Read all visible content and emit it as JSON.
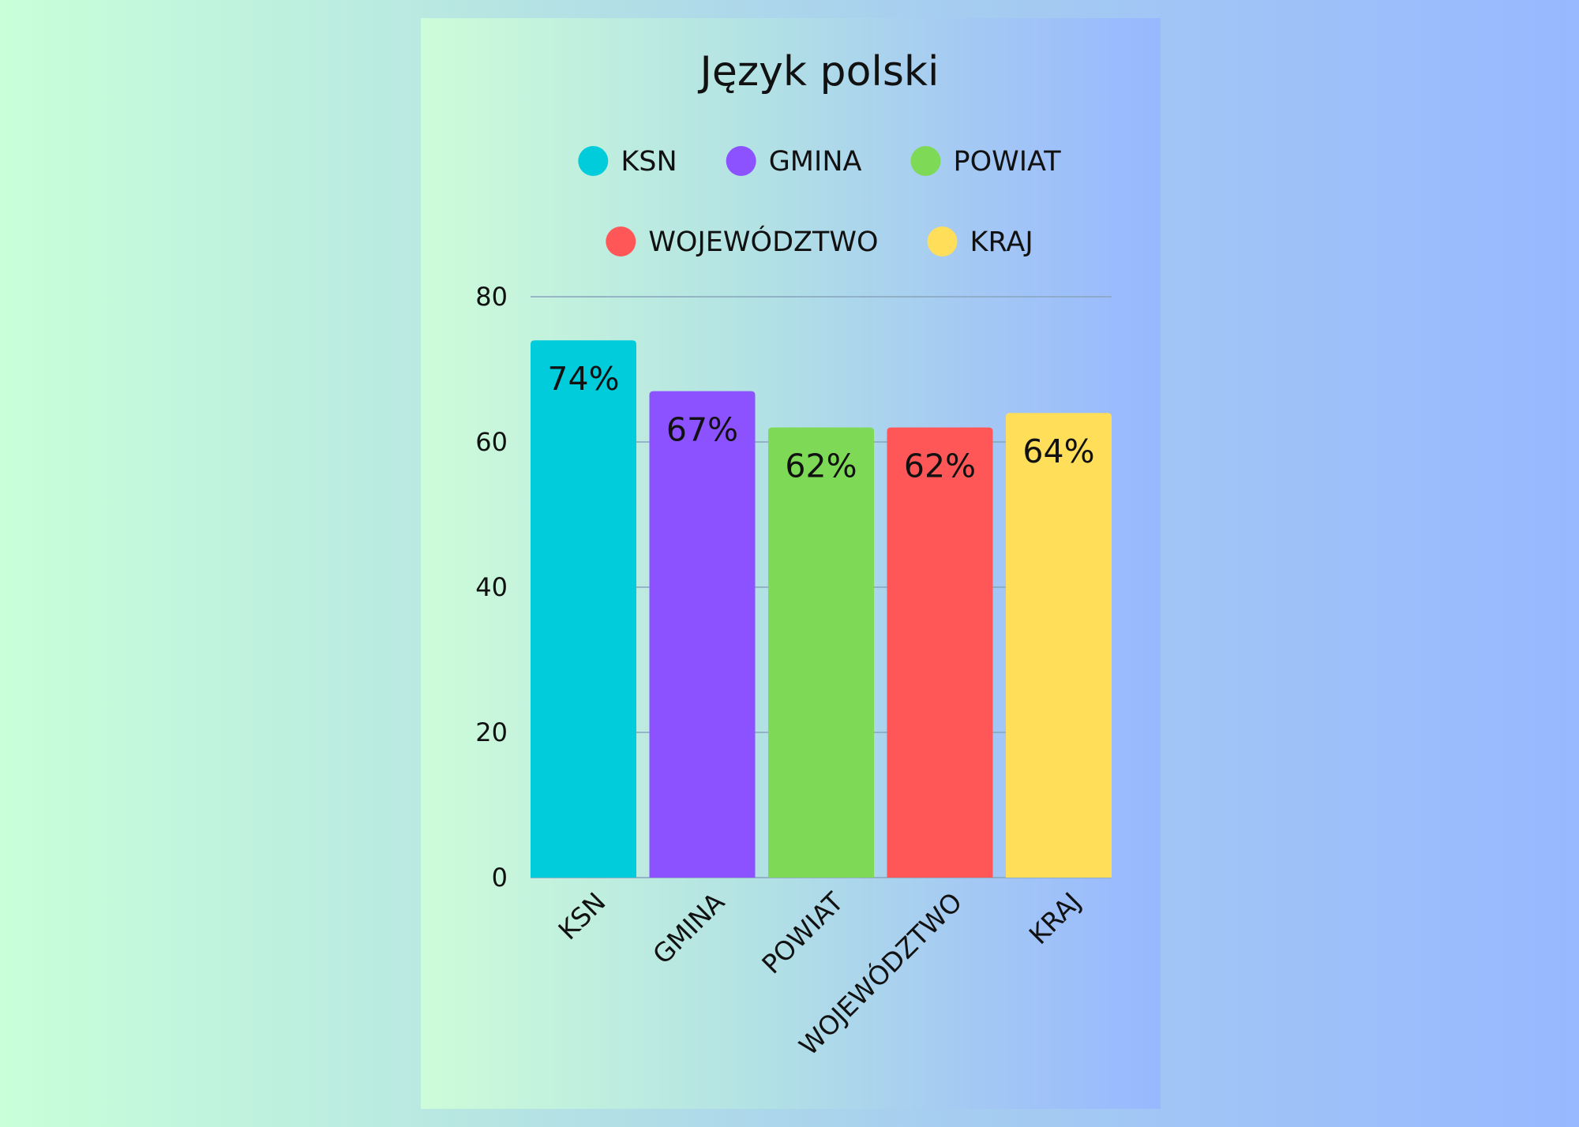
{
  "chart_data": {
    "type": "bar",
    "title": "Język polski",
    "categories": [
      "KSN",
      "GMINA",
      "POWIAT",
      "WOJEWÓDZTWO",
      "KRAJ"
    ],
    "values": [
      74,
      67,
      62,
      62,
      64
    ],
    "value_labels": [
      "74%",
      "67%",
      "62%",
      "62%",
      "64%"
    ],
    "colors": [
      "#00CCDB",
      "#8C52FF",
      "#7ED957",
      "#FF5757",
      "#FFDE59"
    ],
    "legend": {
      "placement": "top",
      "entries": [
        "KSN",
        "GMINA",
        "POWIAT",
        "WOJEWÓDZTWO",
        "KRAJ"
      ]
    },
    "xlabel": "",
    "ylabel": "",
    "ylim": [
      0,
      80
    ],
    "yticks": [
      0,
      20,
      40,
      60,
      80
    ],
    "grid": true
  }
}
